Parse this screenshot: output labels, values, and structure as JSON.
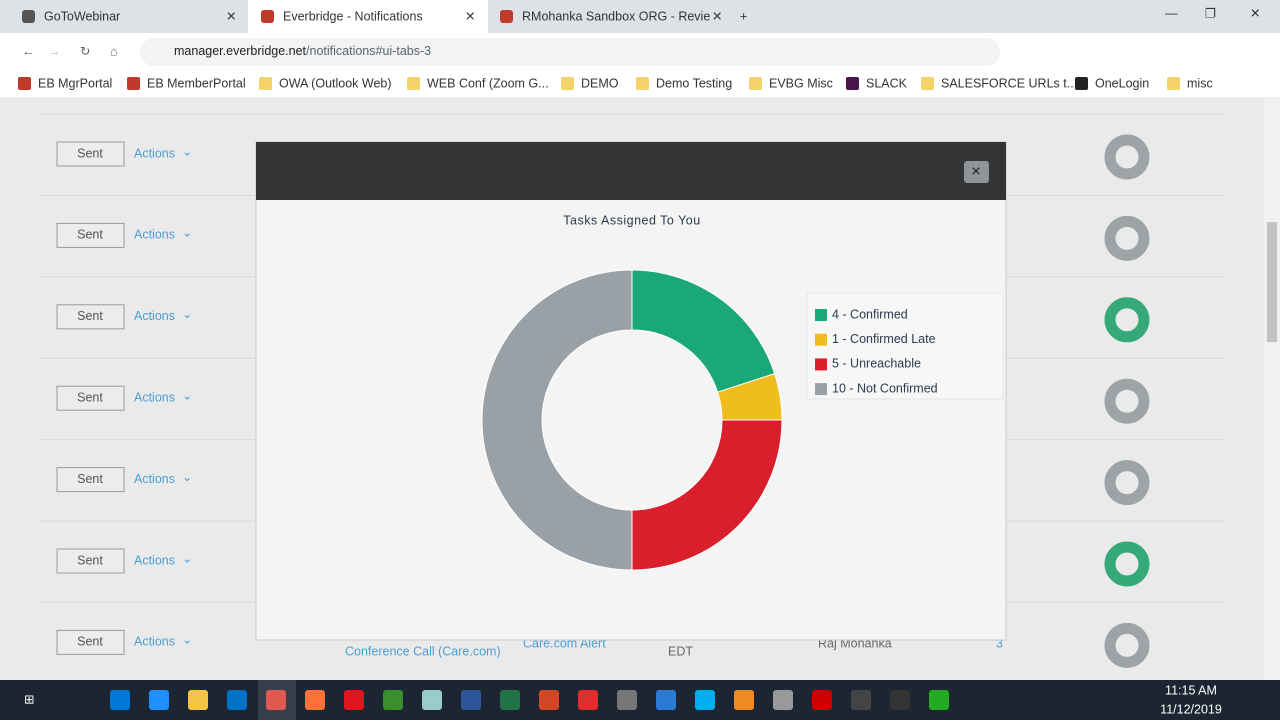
{
  "tabs": [
    "GoToWebinar",
    "Everbridge - Notifications",
    "RMohanka Sandbox ORG - Revie"
  ],
  "address": {
    "host": "manager.everbridge.net",
    "path": "/notifications#ui-tabs-3"
  },
  "bookmarks": [
    "EB MgrPortal",
    "EB MemberPortal",
    "OWA (Outlook Web)",
    "WEB Conf (Zoom G...",
    "DEMO",
    "Demo Testing",
    "EVBG Misc",
    "SLACK",
    "SALESFORCE URLs t...",
    "OneLogin",
    "misc"
  ],
  "rows": [
    {
      "status": "Sent",
      "actions": "Actions"
    },
    {
      "status": "Sent",
      "actions": "Actions"
    },
    {
      "status": "Sent",
      "actions": "Actions"
    },
    {
      "status": "Sent",
      "actions": "Actions"
    },
    {
      "status": "Sent",
      "actions": "Actions"
    },
    {
      "status": "Sent",
      "actions": "Actions"
    },
    {
      "status": "Sent",
      "actions": "Actions",
      "name": "Conference Call (Care.com)",
      "template": "Care.com Alert",
      "zone": "EDT",
      "sender": "Raj Mohanka",
      "count": "3"
    }
  ],
  "chart_data": {
    "type": "donut",
    "title": "Tasks Assigned To You",
    "categories": [
      "4 - Confirmed",
      "1 - Confirmed Late",
      "5 - Unreachable",
      "10 - Not Confirmed"
    ],
    "values": [
      4,
      1,
      5,
      10
    ],
    "colors": [
      "#1aa876",
      "#f0bd1f",
      "#d91f2b",
      "#9aa1a6"
    ],
    "legend": "right"
  },
  "taskbar": {
    "time": "11:15 AM",
    "date": "11/12/2019"
  }
}
